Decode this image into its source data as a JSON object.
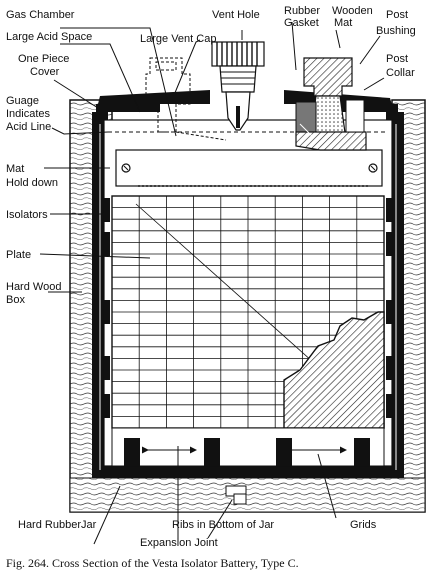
{
  "figure": {
    "caption": "Fig. 264.  Cross Section of the Vesta Isolator Battery, Type C.",
    "colors": {
      "ink": "#111111",
      "wood": "#f6f1e6",
      "rubber": "#111111",
      "paper": "#ffffff"
    }
  },
  "labels": {
    "gas_chamber": "Gas Chamber",
    "vent_hole": "Vent Hole",
    "rubber_gasket_1": "Rubber",
    "rubber_gasket_2": "Gasket",
    "wooden_mat_1": "Wooden",
    "wooden_mat_2": "Mat",
    "post_bushing_1": "Post",
    "post_bushing_2": "Bushing",
    "large_acid_space": "Large Acid Space",
    "large_vent_cap": "Large Vent Cap",
    "one_piece_cover_1": "One Piece",
    "one_piece_cover_2": "Cover",
    "post_collar_1": "Post",
    "post_collar_2": "Collar",
    "guage_1": "Guage",
    "guage_2": "Indicates",
    "guage_3": "Acid Line",
    "mat_1": "Mat",
    "mat_2": "Hold down",
    "isolators": "Isolators",
    "plate": "Plate",
    "hard_wood_1": "Hard Wood",
    "hard_wood_2": "Box",
    "hard_rubber_jar": "Hard RubberJar",
    "ribs": "Ribs in Bottom of Jar",
    "expansion_joint": "Expansion Joint",
    "grids": "Grids"
  }
}
